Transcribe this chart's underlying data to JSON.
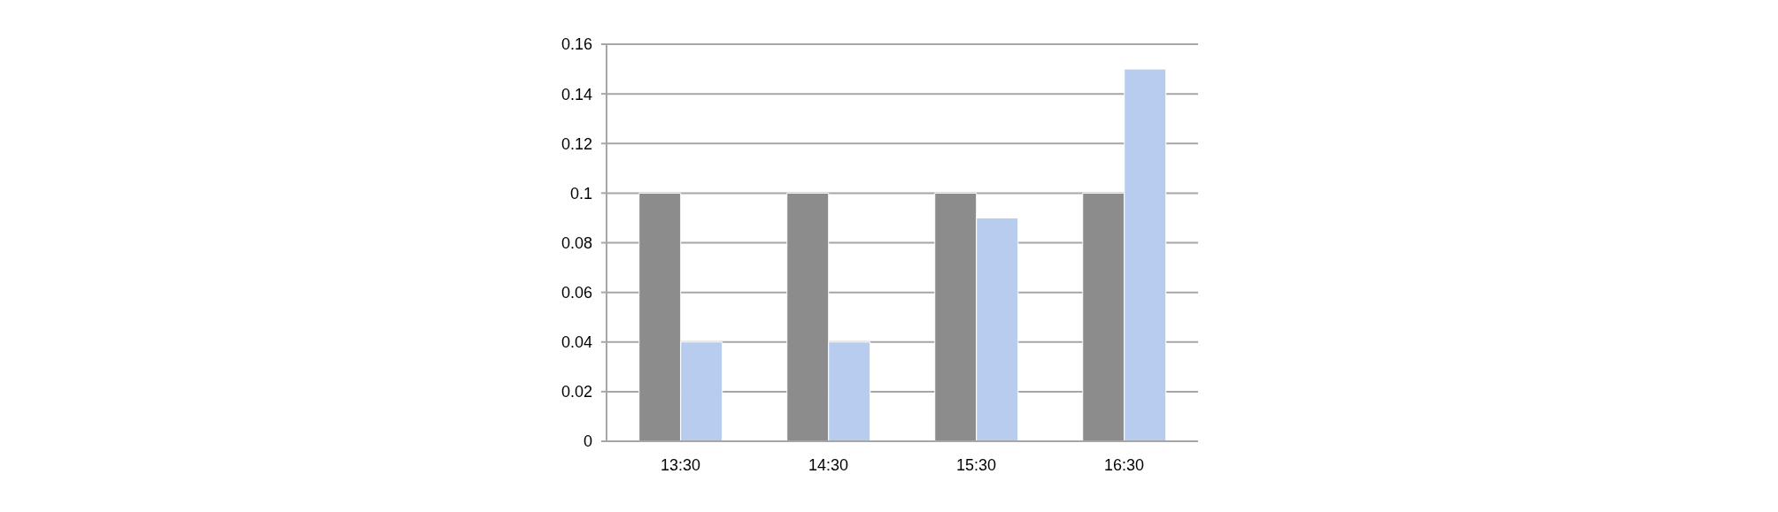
{
  "chart_data": {
    "type": "bar",
    "categories": [
      "13:30",
      "14:30",
      "15:30",
      "16:30"
    ],
    "series": [
      {
        "color": "#8c8c8c",
        "values": [
          0.1,
          0.1,
          0.1,
          0.1
        ]
      },
      {
        "color": "#b8ccf0",
        "values": [
          0.04,
          0.04,
          0.09,
          0.15
        ]
      }
    ],
    "ylim": [
      0,
      0.16
    ],
    "yticks": [
      0,
      0.02,
      0.04,
      0.06,
      0.08,
      0.1,
      0.12,
      0.14,
      0.16
    ],
    "grid": "y"
  }
}
